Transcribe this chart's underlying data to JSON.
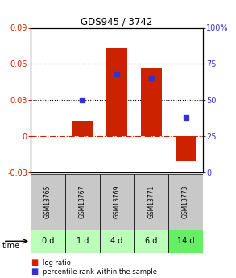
{
  "title": "GDS945 / 3742",
  "samples": [
    "GSM13765",
    "GSM13767",
    "GSM13769",
    "GSM13771",
    "GSM13773"
  ],
  "time_labels": [
    "0 d",
    "1 d",
    "4 d",
    "6 d",
    "14 d"
  ],
  "log_ratio": [
    0.0,
    0.013,
    0.073,
    0.057,
    -0.021
  ],
  "percentile": [
    null,
    50,
    68,
    65,
    38
  ],
  "ylim_left": [
    -0.03,
    0.09
  ],
  "ylim_right": [
    0,
    100
  ],
  "yticks_left": [
    -0.03,
    0,
    0.03,
    0.06,
    0.09
  ],
  "yticks_right": [
    0,
    25,
    50,
    75,
    100
  ],
  "ytick_labels_left": [
    "-0.03",
    "0",
    "0.03",
    "0.06",
    "0.09"
  ],
  "ytick_labels_right": [
    "0",
    "25",
    "50",
    "75",
    "100%"
  ],
  "hlines_dotted": [
    0.03,
    0.06
  ],
  "bar_color": "#cc2200",
  "point_color": "#3333cc",
  "zero_line_color": "#cc2200",
  "sample_bg_color": "#c8c8c8",
  "time_bg_colors": [
    "#bbffbb",
    "#bbffbb",
    "#bbffbb",
    "#bbffbb",
    "#66ee66"
  ],
  "legend_bar_label": "log ratio",
  "legend_point_label": "percentile rank within the sample",
  "bar_width": 0.6,
  "figwidth": 2.93,
  "figheight": 3.45,
  "dpi": 100
}
